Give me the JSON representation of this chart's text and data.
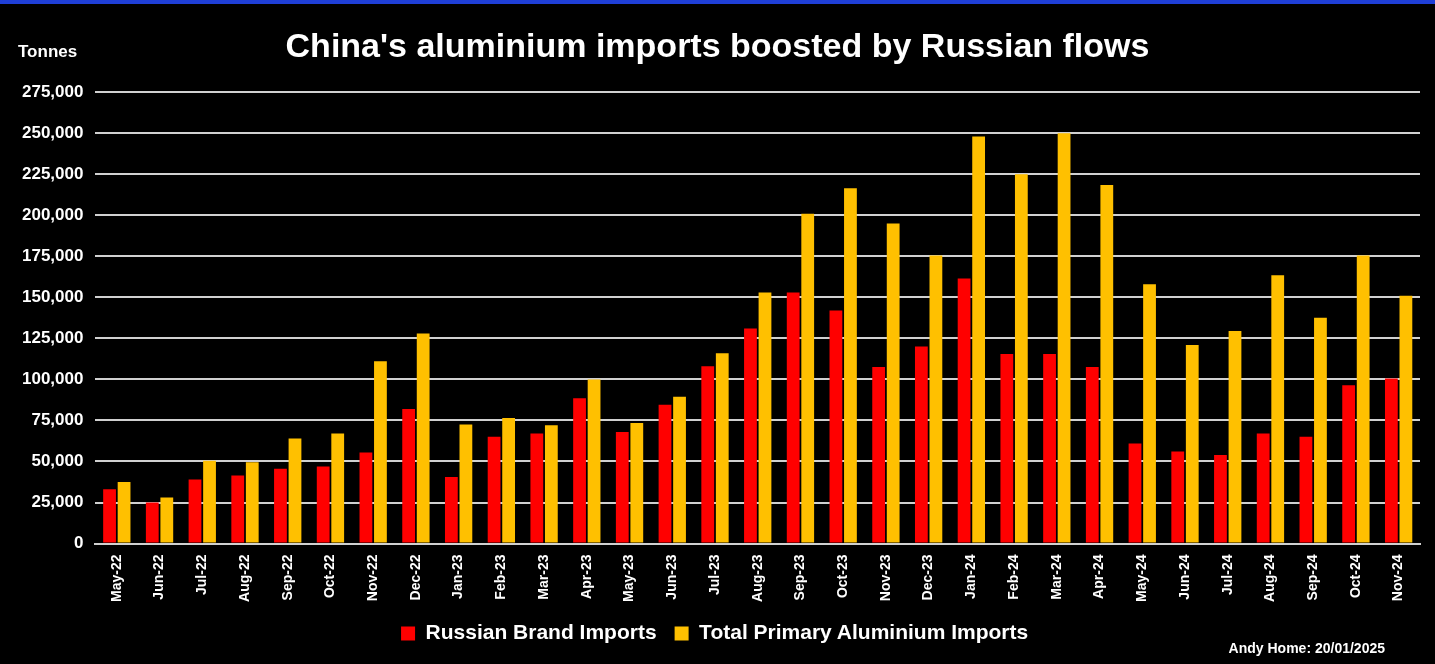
{
  "chart_data": {
    "type": "bar",
    "title": "China's aluminium imports boosted by Russian flows",
    "ylabel": "Tonnes",
    "categories": [
      "May-22",
      "Jun-22",
      "Jul-22",
      "Aug-22",
      "Sep-22",
      "Oct-22",
      "Nov-22",
      "Dec-22",
      "Jan-23",
      "Feb-23",
      "Mar-23",
      "Apr-23",
      "May-23",
      "Jun-23",
      "Jul-23",
      "Aug-23",
      "Sep-23",
      "Oct-23",
      "Nov-23",
      "Dec-23",
      "Jan-24",
      "Feb-24",
      "Mar-24",
      "Apr-24",
      "May-24",
      "Jun-24",
      "Jul-24",
      "Aug-24",
      "Sep-24",
      "Oct-24",
      "Nov-24"
    ],
    "series": [
      {
        "name": "Russian Brand Imports",
        "color": "#ff0000",
        "values": [
          33000,
          25000,
          39000,
          41500,
          45500,
          47000,
          55500,
          82000,
          40500,
          65000,
          67000,
          88500,
          68000,
          84500,
          108000,
          131000,
          153000,
          142000,
          107500,
          120000,
          161500,
          115500,
          115500,
          107500,
          61000,
          56000,
          54000,
          67000,
          65000,
          96500,
          100500
        ]
      },
      {
        "name": "Total Primary Aluminium Imports",
        "color": "#ffc000",
        "values": [
          37500,
          28000,
          50500,
          49500,
          64000,
          67000,
          111000,
          128000,
          72500,
          76500,
          72000,
          100000,
          73500,
          89500,
          116000,
          153000,
          201000,
          216500,
          195000,
          175500,
          248000,
          225000,
          250000,
          218500,
          158000,
          121000,
          129500,
          163500,
          137500,
          175500,
          151000
        ]
      }
    ],
    "ylim": [
      0,
      275000
    ],
    "yticks": [
      {
        "value": 0,
        "label": "0"
      },
      {
        "value": 25000,
        "label": "25,000"
      },
      {
        "value": 50000,
        "label": "50,000"
      },
      {
        "value": 75000,
        "label": "75,000"
      },
      {
        "value": 100000,
        "label": "100,000"
      },
      {
        "value": 125000,
        "label": "125,000"
      },
      {
        "value": 150000,
        "label": "150,000"
      },
      {
        "value": 175000,
        "label": "175,000"
      },
      {
        "value": 200000,
        "label": "200,000"
      },
      {
        "value": 225000,
        "label": "225,000"
      },
      {
        "value": 250000,
        "label": "250,000"
      },
      {
        "value": 275000,
        "label": "275,000"
      }
    ],
    "grid": "y",
    "legend": "bottom",
    "annotations": [
      "Andy Home: 20/01/2025"
    ]
  }
}
